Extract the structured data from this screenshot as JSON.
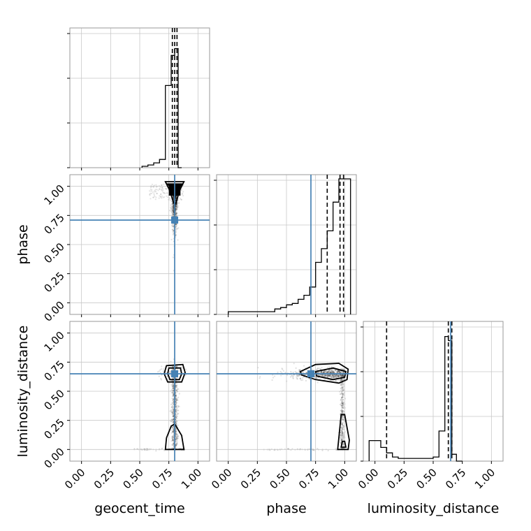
{
  "chart_data": {
    "type": "corner",
    "parameters": [
      "geocent_time",
      "phase",
      "luminosity_distance"
    ],
    "axis_labels": [
      "geocent_time",
      "phase",
      "luminosity_distance"
    ],
    "ticks": [
      0.0,
      0.25,
      0.5,
      0.75,
      1.0
    ],
    "tick_labels": [
      "0.00",
      "0.25",
      "0.50",
      "0.75",
      "1.00"
    ],
    "lim": [
      -0.1,
      1.1
    ],
    "grid": true,
    "truths": [
      0.8,
      0.71,
      0.65
    ],
    "truth_color": "#4682b4",
    "quantiles": [
      [
        0.78,
        0.8,
        0.82
      ],
      [
        0.85,
        0.96,
        0.99
      ],
      [
        0.1,
        0.63,
        0.66
      ]
    ],
    "histograms": [
      {
        "parameter": "geocent_time",
        "bin_edges": [
          0.52,
          0.57,
          0.62,
          0.67,
          0.72,
          0.77,
          0.8,
          0.83,
          0.86
        ],
        "counts": [
          0.01,
          0.02,
          0.035,
          0.06,
          0.6,
          0.82,
          0.87,
          0.0
        ]
      },
      {
        "parameter": "phase",
        "bin_edges": [
          0.0,
          0.4,
          0.45,
          0.5,
          0.55,
          0.6,
          0.65,
          0.7,
          0.75,
          0.8,
          0.85,
          0.9,
          0.95,
          0.98,
          1.05
        ],
        "counts": [
          0.02,
          0.04,
          0.05,
          0.07,
          0.08,
          0.11,
          0.14,
          0.2,
          0.38,
          0.48,
          0.61,
          0.82,
          0.99,
          0.99
        ]
      },
      {
        "parameter": "luminosity_distance",
        "bin_edges": [
          -0.05,
          0.0,
          0.05,
          0.1,
          0.15,
          0.2,
          0.3,
          0.4,
          0.5,
          0.55,
          0.6,
          0.63,
          0.66,
          0.7,
          0.75
        ],
        "counts": [
          0.15,
          0.15,
          0.1,
          0.06,
          0.03,
          0.02,
          0.02,
          0.02,
          0.03,
          0.22,
          0.91,
          0.88,
          0.05,
          0.0
        ]
      }
    ],
    "panels_2d": [
      {
        "x": "geocent_time",
        "y": "phase",
        "x_center": 0.8,
        "y_center": 0.96
      },
      {
        "x": "geocent_time",
        "y": "luminosity_distance",
        "x_center": 0.8,
        "y_center": 0.65
      },
      {
        "x": "phase",
        "y": "luminosity_distance",
        "x_center": 0.95,
        "y_center": 0.65
      }
    ]
  }
}
